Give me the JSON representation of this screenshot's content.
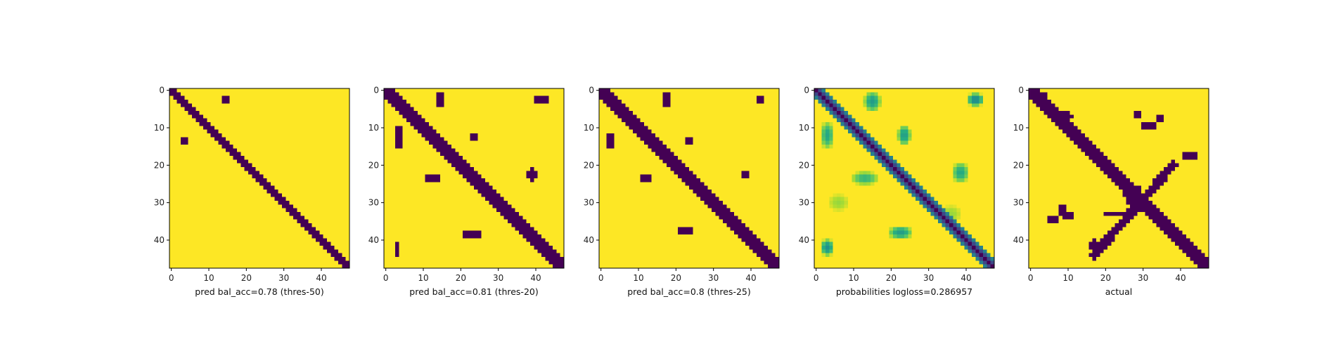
{
  "colors": {
    "background": "#ffffff",
    "low": "#440154",
    "high": "#fde725",
    "mid_teal": "#21918c",
    "mid_green": "#5ec962",
    "axis": "#000000"
  },
  "chart_data": [
    {
      "type": "heatmap",
      "xlabel": "pred bal_acc=0.78 (thres-50)",
      "grid_size": 48,
      "xlim": [
        0,
        47
      ],
      "ylim": [
        47,
        0
      ],
      "xticks": [
        0,
        10,
        20,
        30,
        40
      ],
      "yticks": [
        0,
        10,
        20,
        30,
        40
      ],
      "colormap": "viridis",
      "value_range": [
        0,
        1
      ],
      "diagonal_band_halfwidth": 1.5,
      "blobs": [
        {
          "row": 2.5,
          "col": 14.5,
          "rx": 0.6,
          "ry": 1.8,
          "value": 0
        },
        {
          "row": 13.5,
          "col": 3.5,
          "rx": 0.6,
          "ry": 1.3,
          "value": 0
        }
      ]
    },
    {
      "type": "heatmap",
      "xlabel": "pred bal_acc=0.81 (thres-20)",
      "grid_size": 48,
      "xlim": [
        0,
        47
      ],
      "ylim": [
        47,
        0
      ],
      "xticks": [
        0,
        10,
        20,
        30,
        40
      ],
      "yticks": [
        0,
        10,
        20,
        30,
        40
      ],
      "colormap": "viridis",
      "value_range": [
        0,
        1
      ],
      "diagonal_band_halfwidth": 2.3,
      "blobs": [
        {
          "row": 2.5,
          "col": 14.5,
          "rx": 1.2,
          "ry": 2.2,
          "value": 0
        },
        {
          "row": 2.5,
          "col": 41.5,
          "rx": 2.0,
          "ry": 1.0,
          "value": 0
        },
        {
          "row": 12.5,
          "col": 3.5,
          "rx": 1.0,
          "ry": 3.0,
          "value": 0
        },
        {
          "row": 12.5,
          "col": 23.5,
          "rx": 0.8,
          "ry": 1.5,
          "value": 0
        },
        {
          "row": 22.5,
          "col": 39.0,
          "rx": 1.2,
          "ry": 1.8,
          "value": 0
        },
        {
          "row": 23.5,
          "col": 12.5,
          "rx": 2.0,
          "ry": 0.8,
          "value": 0
        },
        {
          "row": 38.5,
          "col": 23.0,
          "rx": 2.5,
          "ry": 1.2,
          "value": 0
        },
        {
          "row": 42.5,
          "col": 3.0,
          "rx": 0.8,
          "ry": 1.6,
          "value": 0
        }
      ]
    },
    {
      "type": "heatmap",
      "xlabel": "pred bal_acc=0.8 (thres-25)",
      "grid_size": 48,
      "xlim": [
        0,
        47
      ],
      "ylim": [
        47,
        0
      ],
      "xticks": [
        0,
        10,
        20,
        30,
        40
      ],
      "yticks": [
        0,
        10,
        20,
        30,
        40
      ],
      "colormap": "viridis",
      "value_range": [
        0,
        1
      ],
      "diagonal_band_halfwidth": 2.0,
      "blobs": [
        {
          "row": 2.5,
          "col": 17.5,
          "rx": 1.2,
          "ry": 2.0,
          "value": 0
        },
        {
          "row": 2.5,
          "col": 42.5,
          "rx": 0.6,
          "ry": 1.0,
          "value": 0
        },
        {
          "row": 13.5,
          "col": 2.5,
          "rx": 1.0,
          "ry": 2.0,
          "value": 0
        },
        {
          "row": 13.5,
          "col": 23.5,
          "rx": 0.7,
          "ry": 1.5,
          "value": 0
        },
        {
          "row": 23.5,
          "col": 12.0,
          "rx": 2.2,
          "ry": 0.8,
          "value": 0
        },
        {
          "row": 22.5,
          "col": 38.5,
          "rx": 1.0,
          "ry": 1.6,
          "value": 0
        },
        {
          "row": 37.5,
          "col": 22.5,
          "rx": 2.0,
          "ry": 1.0,
          "value": 0
        },
        {
          "row": 42.5,
          "col": 2.5,
          "rx": 0.8,
          "ry": 0.6,
          "value": 0
        }
      ]
    },
    {
      "type": "heatmap",
      "xlabel": "probabilities logloss=0.286957",
      "grid_size": 48,
      "xlim": [
        0,
        47
      ],
      "ylim": [
        47,
        0
      ],
      "xticks": [
        0,
        10,
        20,
        30,
        40
      ],
      "yticks": [
        0,
        10,
        20,
        30,
        40
      ],
      "colormap": "viridis",
      "value_range": [
        0,
        1
      ],
      "diagonal_band_halfwidth": 2.6,
      "diagonal_soft": true,
      "blobs": [
        {
          "row": 3.0,
          "col": 15.0,
          "rx": 2.5,
          "ry": 3.0,
          "value": 0.55
        },
        {
          "row": 2.5,
          "col": 42.5,
          "rx": 2.5,
          "ry": 2.0,
          "value": 0.45
        },
        {
          "row": 12.0,
          "col": 3.0,
          "rx": 2.0,
          "ry": 4.0,
          "value": 0.6
        },
        {
          "row": 12.0,
          "col": 23.5,
          "rx": 2.0,
          "ry": 3.0,
          "value": 0.55
        },
        {
          "row": 22.0,
          "col": 38.5,
          "rx": 2.5,
          "ry": 3.0,
          "value": 0.6
        },
        {
          "row": 23.5,
          "col": 13.0,
          "rx": 4.0,
          "ry": 2.0,
          "value": 0.65
        },
        {
          "row": 38.0,
          "col": 22.5,
          "rx": 3.5,
          "ry": 2.0,
          "value": 0.55
        },
        {
          "row": 42.0,
          "col": 3.0,
          "rx": 2.0,
          "ry": 2.5,
          "value": 0.5
        },
        {
          "row": 30.0,
          "col": 6.0,
          "rx": 3.0,
          "ry": 2.5,
          "value": 0.85
        },
        {
          "row": 33.0,
          "col": 36.0,
          "rx": 3.0,
          "ry": 2.5,
          "value": 0.85
        }
      ]
    },
    {
      "type": "heatmap",
      "xlabel": "actual",
      "grid_size": 48,
      "xlim": [
        0,
        47
      ],
      "ylim": [
        47,
        0
      ],
      "xticks": [
        0,
        10,
        20,
        30,
        40
      ],
      "yticks": [
        0,
        10,
        20,
        30,
        40
      ],
      "colormap": "viridis",
      "value_range": [
        0,
        1
      ],
      "diagonal_band_halfwidth": 2.0,
      "anti_diagonal": {
        "from": [
          20,
          38
        ],
        "to": [
          44,
          17
        ],
        "halfwidth": 1.2,
        "value": 0
      },
      "blobs": [
        {
          "row": 2.5,
          "col": 3.0,
          "rx": 2.0,
          "ry": 2.0,
          "value": 0
        },
        {
          "row": 7.0,
          "col": 8.0,
          "rx": 3.0,
          "ry": 1.5,
          "value": 0
        },
        {
          "row": 6.5,
          "col": 28.5,
          "rx": 0.7,
          "ry": 0.8,
          "value": 0
        },
        {
          "row": 7.5,
          "col": 34.5,
          "rx": 1.0,
          "ry": 1.5,
          "value": 0
        },
        {
          "row": 9.5,
          "col": 31.5,
          "rx": 3.0,
          "ry": 0.7,
          "value": 0
        },
        {
          "row": 17.5,
          "col": 42.5,
          "rx": 1.8,
          "ry": 1.3,
          "value": 0
        },
        {
          "row": 28.0,
          "col": 27.5,
          "rx": 2.5,
          "ry": 2.5,
          "value": 0
        },
        {
          "row": 32.0,
          "col": 8.5,
          "rx": 0.8,
          "ry": 2.5,
          "value": 0
        },
        {
          "row": 33.5,
          "col": 10.0,
          "rx": 2.5,
          "ry": 0.8,
          "value": 0
        },
        {
          "row": 34.5,
          "col": 6.0,
          "rx": 1.5,
          "ry": 0.8,
          "value": 0
        },
        {
          "row": 33.0,
          "col": 23.0,
          "rx": 3.5,
          "ry": 0.8,
          "value": 0
        },
        {
          "row": 41.5,
          "col": 17.0,
          "rx": 1.3,
          "ry": 1.6,
          "value": 0
        }
      ]
    }
  ]
}
